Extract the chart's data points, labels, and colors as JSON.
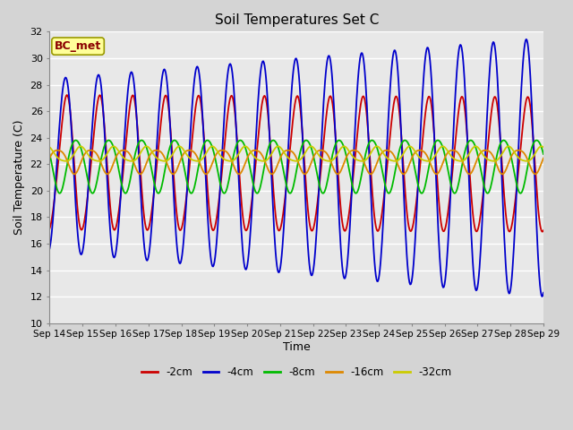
{
  "title": "Soil Temperatures Set C",
  "xlabel": "Time",
  "ylabel": "Soil Temperature (C)",
  "ylim": [
    10,
    32
  ],
  "annotation": "BC_met",
  "fig_facecolor": "#d4d4d4",
  "ax_facecolor": "#e8e8e8",
  "grid_color": "white",
  "xtick_labels": [
    "Sep 14",
    "Sep 15",
    "Sep 16",
    "Sep 17",
    "Sep 18",
    "Sep 19",
    "Sep 20",
    "Sep 21",
    "Sep 22",
    "Sep 23",
    "Sep 24",
    "Sep 25",
    "Sep 26",
    "Sep 27",
    "Sep 28",
    "Sep 29"
  ],
  "xtick_positions": [
    14,
    15,
    16,
    17,
    18,
    19,
    20,
    21,
    22,
    23,
    24,
    25,
    26,
    27,
    28,
    29
  ],
  "ytick_positions": [
    10,
    12,
    14,
    16,
    18,
    20,
    22,
    24,
    26,
    28,
    30,
    32
  ],
  "series_colors": [
    "#cc0000",
    "#0000cc",
    "#00bb00",
    "#dd8800",
    "#cccc00"
  ],
  "series_labels": [
    "-2cm",
    "-4cm",
    "-8cm",
    "-16cm",
    "-32cm"
  ],
  "x_start": 14,
  "x_end": 29,
  "n_points": 720
}
